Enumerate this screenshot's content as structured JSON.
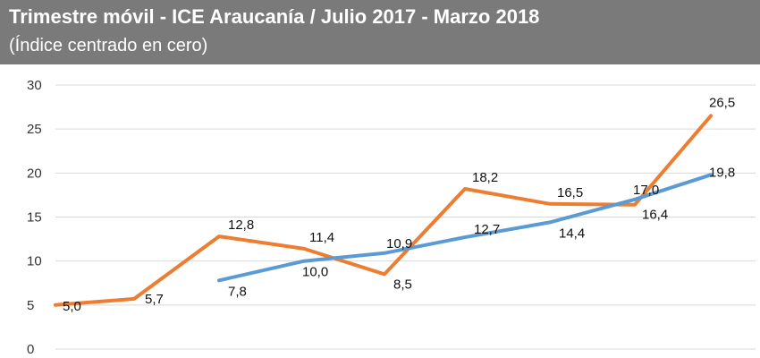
{
  "header": {
    "title": "Trimestre móvil - ICE Araucanía / Julio 2017 - Marzo 2018",
    "subtitle": "(Índice centrado en cero)"
  },
  "chart_data": {
    "type": "line",
    "title": "Trimestre móvil - ICE Araucanía / Julio 2017 - Marzo 2018",
    "subtitle": "(Índice centrado en cero)",
    "xlabel": "",
    "ylabel": "",
    "ylim": [
      0,
      30
    ],
    "yticks": [
      0,
      5,
      10,
      15,
      20,
      25,
      30
    ],
    "grid": true,
    "legend": "none",
    "x": [
      1,
      2,
      3,
      4,
      5,
      6,
      7,
      8,
      9
    ],
    "series": [
      {
        "color": "#ed7d31",
        "values": [
          5.0,
          5.7,
          12.8,
          11.4,
          8.5,
          18.2,
          16.5,
          16.4,
          26.5
        ],
        "labels": [
          "5,0",
          "5,7",
          "12,8",
          "11,4",
          "8,5",
          "18,2",
          "16,5",
          "16,4",
          "26,5"
        ]
      },
      {
        "color": "#5b9bd5",
        "values": [
          null,
          null,
          7.8,
          10.0,
          10.9,
          12.7,
          14.4,
          17.0,
          19.8
        ],
        "labels": [
          null,
          null,
          "7,8",
          "10,0",
          "10,9",
          "12,7",
          "14,4",
          "17,0",
          "19,8"
        ]
      }
    ]
  }
}
